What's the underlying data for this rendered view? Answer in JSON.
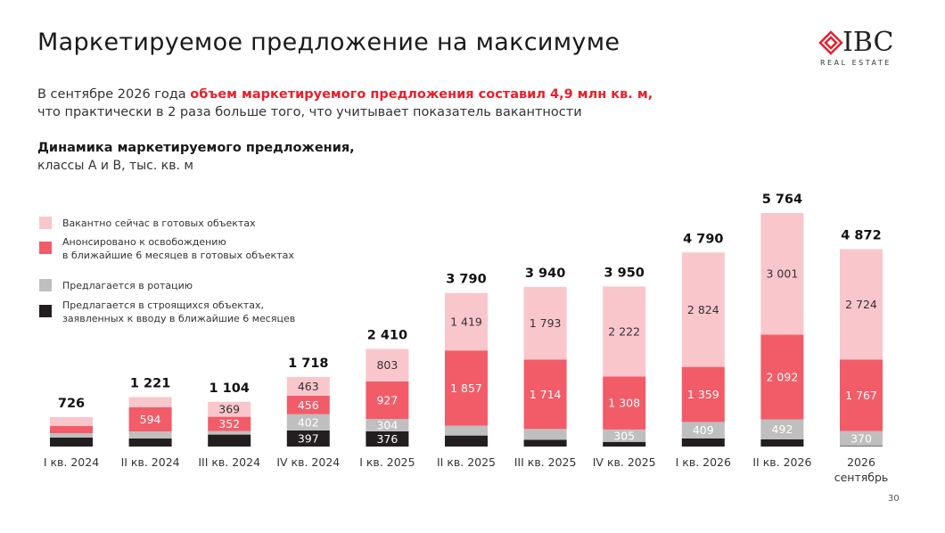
{
  "slide": {
    "title": "Маркетируемое предложение на максимуме",
    "lead_plain": "В сентябре 2026 года",
    "lead_highlight": "объем маркетируемого предложения составил 4,9 млн кв. м,",
    "lead_line2": "что практически в 2 раза больше того, что учитывает показатель вакантности",
    "logo": "IBC",
    "logo_sub": "REAL ESTATE",
    "page_number": "30"
  },
  "chart_data": {
    "type": "stacked_bar",
    "title": "Динамика маркетируемого предложения,",
    "subtitle": "классы А и В, тыс. кв. м",
    "categories": [
      "I кв. 2024",
      "II кв. 2024",
      "III кв. 2024",
      "IV кв. 2024",
      "I кв. 2025",
      "II кв. 2025",
      "III кв. 2025",
      "IV кв. 2025",
      "I кв. 2026",
      "II кв. 2026",
      "2026\nсентябрь"
    ],
    "series": [
      {
        "name": "Предлагается в строящихся объектах,\nзаявленных к вводу в ближайшие 6 месяцев",
        "color": "#231f20",
        "label_color": "#ffffff",
        "values": [
          220,
          198,
          295,
          397,
          376,
          272,
          169,
          115,
          198,
          179,
          11
        ],
        "value_labels": [
          null,
          null,
          null,
          "397",
          "376",
          null,
          null,
          null,
          null,
          null,
          null
        ]
      },
      {
        "name": "Предлагается в ротацию",
        "color": "#bfbfbf",
        "label_color": "#ffffff",
        "values": [
          110,
          176,
          88,
          402,
          304,
          242,
          264,
          305,
          409,
          492,
          370
        ],
        "value_labels": [
          null,
          null,
          null,
          "402",
          "304",
          null,
          null,
          "305",
          "409",
          "492",
          "370"
        ]
      },
      {
        "name": "Анонсировано к освобождению\nв ближайшие 6 месяцев в готовых объектах",
        "color": "#f25c68",
        "label_color": "#ffffff",
        "values": [
          176,
          594,
          352,
          456,
          927,
          1857,
          1714,
          1308,
          1359,
          2092,
          1767
        ],
        "value_labels": [
          null,
          "594",
          "352",
          "456",
          "927",
          "1 857",
          "1 714",
          "1 308",
          "1 359",
          "2 092",
          "1 767"
        ]
      },
      {
        "name": "Вакантно сейчас в готовых объектах",
        "color": "#f9c6cc",
        "label_color": "#333333",
        "values": [
          220,
          253,
          369,
          463,
          803,
          1419,
          1793,
          2222,
          2824,
          3001,
          2724
        ],
        "value_labels": [
          null,
          null,
          "369",
          "463",
          "803",
          "1 419",
          "1 793",
          "2 222",
          "2 824",
          "3 001",
          "2 724"
        ]
      }
    ],
    "totals": [
      726,
      1221,
      1104,
      1718,
      2410,
      3790,
      3940,
      3950,
      4790,
      5764,
      4872
    ],
    "totals_labels": [
      "726",
      "1 221",
      "1 104",
      "1 718",
      "2 410",
      "3 790",
      "3 940",
      "3 950",
      "4 790",
      "5 764",
      "4 872"
    ]
  }
}
